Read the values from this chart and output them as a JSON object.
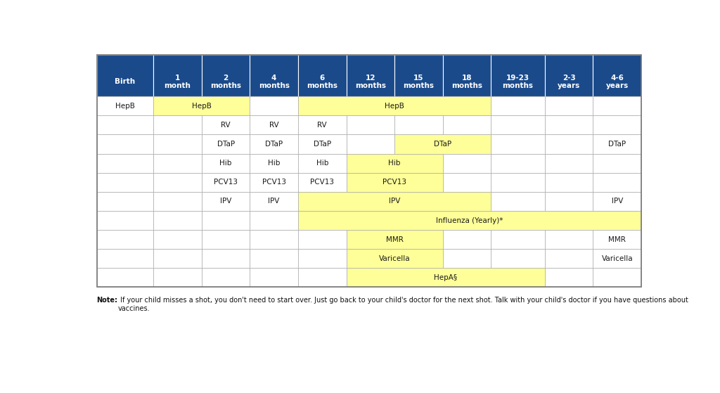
{
  "header_bg": "#1a4a8a",
  "header_text_color": "#ffffff",
  "yellow_bg": "#ffff99",
  "white_bg": "#ffffff",
  "border_color": "#aaaaaa",
  "columns": [
    "Birth",
    "1\nmonth",
    "2\nmonths",
    "4\nmonths",
    "6\nmonths",
    "12\nmonths",
    "15\nmonths",
    "18\nmonths",
    "19-23\nmonths",
    "2-3\nyears",
    "4-6\nyears"
  ],
  "col_props": [
    1.0,
    0.85,
    0.85,
    0.85,
    0.85,
    0.85,
    0.85,
    0.85,
    0.95,
    0.85,
    0.85
  ],
  "note_bold": "Note:",
  "note_rest": " If your child misses a shot, you don't need to start over. Just go back to your child's doctor for the next shot. Talk with your child's doctor if you have questions about\nvaccines.",
  "rows": [
    {
      "vaccine": "HepB",
      "cells": [
        {
          "cols": [
            0
          ],
          "text": "HepB",
          "bg": "white"
        },
        {
          "cols": [
            1,
            2
          ],
          "text": "HepB",
          "bg": "yellow"
        },
        {
          "cols": [
            3
          ],
          "text": "",
          "bg": "white"
        },
        {
          "cols": [
            4,
            5,
            6,
            7
          ],
          "text": "HepB",
          "bg": "yellow"
        },
        {
          "cols": [
            8
          ],
          "text": "",
          "bg": "white"
        },
        {
          "cols": [
            9
          ],
          "text": "",
          "bg": "white"
        },
        {
          "cols": [
            10
          ],
          "text": "",
          "bg": "white"
        }
      ]
    },
    {
      "vaccine": "RV",
      "cells": [
        {
          "cols": [
            0
          ],
          "text": "",
          "bg": "white"
        },
        {
          "cols": [
            1
          ],
          "text": "",
          "bg": "white"
        },
        {
          "cols": [
            2
          ],
          "text": "RV",
          "bg": "white"
        },
        {
          "cols": [
            3
          ],
          "text": "RV",
          "bg": "white"
        },
        {
          "cols": [
            4
          ],
          "text": "RV",
          "bg": "white"
        },
        {
          "cols": [
            5
          ],
          "text": "",
          "bg": "white"
        },
        {
          "cols": [
            6
          ],
          "text": "",
          "bg": "white"
        },
        {
          "cols": [
            7
          ],
          "text": "",
          "bg": "white"
        },
        {
          "cols": [
            8
          ],
          "text": "",
          "bg": "white"
        },
        {
          "cols": [
            9
          ],
          "text": "",
          "bg": "white"
        },
        {
          "cols": [
            10
          ],
          "text": "",
          "bg": "white"
        }
      ]
    },
    {
      "vaccine": "DTaP",
      "cells": [
        {
          "cols": [
            0
          ],
          "text": "",
          "bg": "white"
        },
        {
          "cols": [
            1
          ],
          "text": "",
          "bg": "white"
        },
        {
          "cols": [
            2
          ],
          "text": "DTaP",
          "bg": "white"
        },
        {
          "cols": [
            3
          ],
          "text": "DTaP",
          "bg": "white"
        },
        {
          "cols": [
            4
          ],
          "text": "DTaP",
          "bg": "white"
        },
        {
          "cols": [
            5
          ],
          "text": "",
          "bg": "white"
        },
        {
          "cols": [
            6,
            7
          ],
          "text": "DTaP",
          "bg": "yellow"
        },
        {
          "cols": [
            8
          ],
          "text": "",
          "bg": "white"
        },
        {
          "cols": [
            9
          ],
          "text": "",
          "bg": "white"
        },
        {
          "cols": [
            10
          ],
          "text": "DTaP",
          "bg": "white"
        }
      ]
    },
    {
      "vaccine": "Hib",
      "cells": [
        {
          "cols": [
            0
          ],
          "text": "",
          "bg": "white"
        },
        {
          "cols": [
            1
          ],
          "text": "",
          "bg": "white"
        },
        {
          "cols": [
            2
          ],
          "text": "Hib",
          "bg": "white"
        },
        {
          "cols": [
            3
          ],
          "text": "Hib",
          "bg": "white"
        },
        {
          "cols": [
            4
          ],
          "text": "Hib",
          "bg": "white"
        },
        {
          "cols": [
            5,
            6
          ],
          "text": "Hib",
          "bg": "yellow"
        },
        {
          "cols": [
            7
          ],
          "text": "",
          "bg": "white"
        },
        {
          "cols": [
            8
          ],
          "text": "",
          "bg": "white"
        },
        {
          "cols": [
            9
          ],
          "text": "",
          "bg": "white"
        },
        {
          "cols": [
            10
          ],
          "text": "",
          "bg": "white"
        }
      ]
    },
    {
      "vaccine": "PCV13",
      "cells": [
        {
          "cols": [
            0
          ],
          "text": "",
          "bg": "white"
        },
        {
          "cols": [
            1
          ],
          "text": "",
          "bg": "white"
        },
        {
          "cols": [
            2
          ],
          "text": "PCV13",
          "bg": "white"
        },
        {
          "cols": [
            3
          ],
          "text": "PCV13",
          "bg": "white"
        },
        {
          "cols": [
            4
          ],
          "text": "PCV13",
          "bg": "white"
        },
        {
          "cols": [
            5,
            6
          ],
          "text": "PCV13",
          "bg": "yellow"
        },
        {
          "cols": [
            7
          ],
          "text": "",
          "bg": "white"
        },
        {
          "cols": [
            8
          ],
          "text": "",
          "bg": "white"
        },
        {
          "cols": [
            9
          ],
          "text": "",
          "bg": "white"
        },
        {
          "cols": [
            10
          ],
          "text": "",
          "bg": "white"
        }
      ]
    },
    {
      "vaccine": "IPV",
      "cells": [
        {
          "cols": [
            0
          ],
          "text": "",
          "bg": "white"
        },
        {
          "cols": [
            1
          ],
          "text": "",
          "bg": "white"
        },
        {
          "cols": [
            2
          ],
          "text": "IPV",
          "bg": "white"
        },
        {
          "cols": [
            3
          ],
          "text": "IPV",
          "bg": "white"
        },
        {
          "cols": [
            4,
            5,
            6,
            7
          ],
          "text": "IPV",
          "bg": "yellow"
        },
        {
          "cols": [
            8
          ],
          "text": "",
          "bg": "white"
        },
        {
          "cols": [
            9
          ],
          "text": "",
          "bg": "white"
        },
        {
          "cols": [
            10
          ],
          "text": "IPV",
          "bg": "white"
        }
      ]
    },
    {
      "vaccine": "Influenza",
      "cells": [
        {
          "cols": [
            0
          ],
          "text": "",
          "bg": "white"
        },
        {
          "cols": [
            1
          ],
          "text": "",
          "bg": "white"
        },
        {
          "cols": [
            2
          ],
          "text": "",
          "bg": "white"
        },
        {
          "cols": [
            3
          ],
          "text": "",
          "bg": "white"
        },
        {
          "cols": [
            4,
            5,
            6,
            7,
            8,
            9,
            10
          ],
          "text": "Influenza (Yearly)*",
          "bg": "yellow"
        }
      ]
    },
    {
      "vaccine": "MMR",
      "cells": [
        {
          "cols": [
            0
          ],
          "text": "",
          "bg": "white"
        },
        {
          "cols": [
            1
          ],
          "text": "",
          "bg": "white"
        },
        {
          "cols": [
            2
          ],
          "text": "",
          "bg": "white"
        },
        {
          "cols": [
            3
          ],
          "text": "",
          "bg": "white"
        },
        {
          "cols": [
            4
          ],
          "text": "",
          "bg": "white"
        },
        {
          "cols": [
            5,
            6
          ],
          "text": "MMR",
          "bg": "yellow"
        },
        {
          "cols": [
            7
          ],
          "text": "",
          "bg": "white"
        },
        {
          "cols": [
            8
          ],
          "text": "",
          "bg": "white"
        },
        {
          "cols": [
            9
          ],
          "text": "",
          "bg": "white"
        },
        {
          "cols": [
            10
          ],
          "text": "MMR",
          "bg": "white"
        }
      ]
    },
    {
      "vaccine": "Varicella",
      "cells": [
        {
          "cols": [
            0
          ],
          "text": "",
          "bg": "white"
        },
        {
          "cols": [
            1
          ],
          "text": "",
          "bg": "white"
        },
        {
          "cols": [
            2
          ],
          "text": "",
          "bg": "white"
        },
        {
          "cols": [
            3
          ],
          "text": "",
          "bg": "white"
        },
        {
          "cols": [
            4
          ],
          "text": "",
          "bg": "white"
        },
        {
          "cols": [
            5,
            6
          ],
          "text": "Varicella",
          "bg": "yellow"
        },
        {
          "cols": [
            7
          ],
          "text": "",
          "bg": "white"
        },
        {
          "cols": [
            8
          ],
          "text": "",
          "bg": "white"
        },
        {
          "cols": [
            9
          ],
          "text": "",
          "bg": "white"
        },
        {
          "cols": [
            10
          ],
          "text": "Varicella",
          "bg": "white"
        }
      ]
    },
    {
      "vaccine": "HepA",
      "cells": [
        {
          "cols": [
            0
          ],
          "text": "",
          "bg": "white"
        },
        {
          "cols": [
            1
          ],
          "text": "",
          "bg": "white"
        },
        {
          "cols": [
            2
          ],
          "text": "",
          "bg": "white"
        },
        {
          "cols": [
            3
          ],
          "text": "",
          "bg": "white"
        },
        {
          "cols": [
            4
          ],
          "text": "",
          "bg": "white"
        },
        {
          "cols": [
            5,
            6,
            7,
            8
          ],
          "text": "HepA§",
          "bg": "yellow"
        },
        {
          "cols": [
            9
          ],
          "text": "",
          "bg": "white"
        },
        {
          "cols": [
            10
          ],
          "text": "",
          "bg": "white"
        }
      ]
    }
  ]
}
